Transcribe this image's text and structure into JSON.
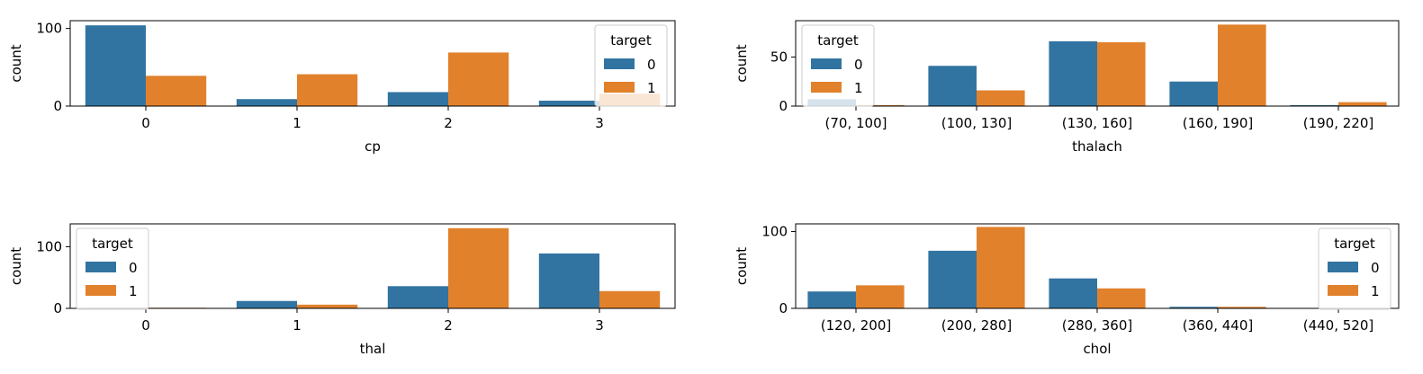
{
  "colors": {
    "0": "#3274a1",
    "1": "#e1812c"
  },
  "chart_data": [
    {
      "type": "bar",
      "categories": [
        "0",
        "1",
        "2",
        "3"
      ],
      "xlabel": "cp",
      "ylabel": "count",
      "ylim": [
        0,
        110
      ],
      "yticks": [
        0,
        100
      ],
      "legend": {
        "title": "target",
        "placement": "top-right"
      },
      "series": [
        {
          "name": "0",
          "values": [
            104,
            9,
            18,
            7
          ]
        },
        {
          "name": "1",
          "values": [
            39,
            41,
            69,
            16
          ]
        }
      ]
    },
    {
      "type": "bar",
      "categories": [
        "(70, 100]",
        "(100, 130]",
        "(130, 160]",
        "(160, 190]",
        "(190, 220]"
      ],
      "xlabel": "thalach",
      "ylabel": "count",
      "ylim": [
        0,
        87
      ],
      "yticks": [
        0,
        50
      ],
      "legend": {
        "title": "target",
        "placement": "top-left"
      },
      "series": [
        {
          "name": "0",
          "values": [
            7,
            41,
            66,
            25,
            1
          ]
        },
        {
          "name": "1",
          "values": [
            1,
            16,
            65,
            83,
            4
          ]
        }
      ]
    },
    {
      "type": "bar",
      "categories": [
        "0",
        "1",
        "2",
        "3"
      ],
      "xlabel": "thal",
      "ylabel": "count",
      "ylim": [
        0,
        137
      ],
      "yticks": [
        0,
        100
      ],
      "legend": {
        "title": "target",
        "placement": "top-left"
      },
      "series": [
        {
          "name": "0",
          "values": [
            1,
            12,
            36,
            89
          ]
        },
        {
          "name": "1",
          "values": [
            1,
            6,
            130,
            28
          ]
        }
      ]
    },
    {
      "type": "bar",
      "categories": [
        "(120, 200]",
        "(200, 280]",
        "(280, 360]",
        "(360, 440]",
        "(440, 520]"
      ],
      "xlabel": "chol",
      "ylabel": "count",
      "ylim": [
        0,
        110
      ],
      "yticks": [
        0,
        100
      ],
      "legend": {
        "title": "target",
        "placement": "top-right"
      },
      "series": [
        {
          "name": "0",
          "values": [
            22,
            75,
            39,
            2,
            0
          ]
        },
        {
          "name": "1",
          "values": [
            30,
            106,
            26,
            2,
            0
          ]
        }
      ]
    }
  ]
}
